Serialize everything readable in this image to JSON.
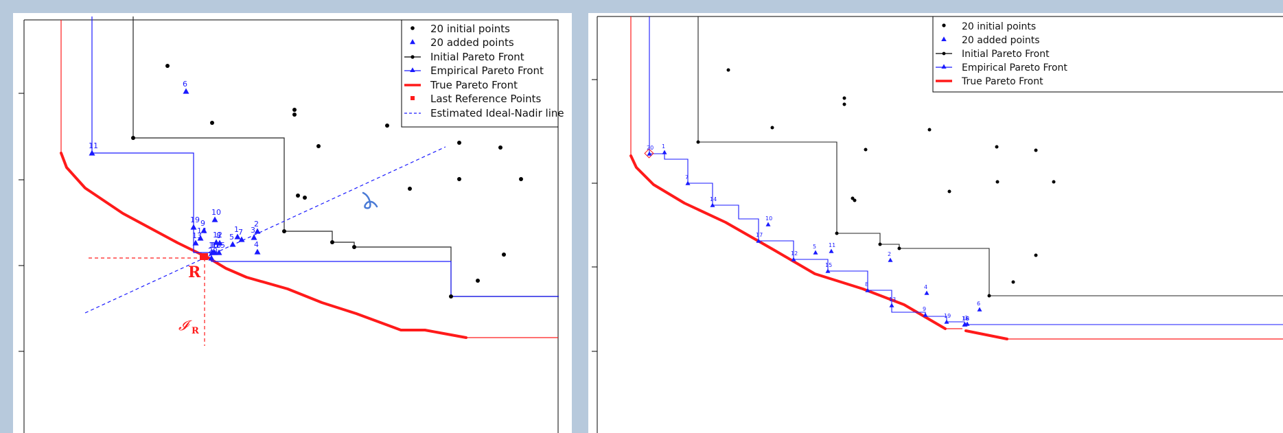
{
  "colors": {
    "background": "#b7c9dc",
    "initial": "#000000",
    "added": "#1a1aff",
    "true_front": "#ff1a1a",
    "empirical_front": "#1a1aff"
  },
  "chart_data": [
    {
      "type": "scatter",
      "panel": "left",
      "legend": [
        "20 initial points",
        "20 added points",
        "Initial Pareto Front",
        "Empirical Pareto Front",
        "True Pareto Front",
        "Last Reference Points",
        "Estimated Ideal-Nadir line"
      ],
      "legend_placement": "top-right",
      "annotations": {
        "reference_label": "R",
        "ideal_label": "𝓘",
        "ideal_subscript": "R"
      },
      "series": [
        {
          "name": "20 initial points",
          "points": [
            [
              225,
              77
            ],
            [
              290,
              160
            ],
            [
              410,
              141
            ],
            [
              410,
              148
            ],
            [
              445,
              194
            ],
            [
              545,
              164
            ],
            [
              650,
              189
            ],
            [
              710,
              196
            ],
            [
              175,
              182
            ],
            [
              415,
              266
            ],
            [
              425,
              269
            ],
            [
              578,
              256
            ],
            [
              650,
              242
            ],
            [
              740,
              242
            ],
            [
              395,
              318
            ],
            [
              465,
              334
            ],
            [
              497,
              341
            ],
            [
              715,
              352
            ],
            [
              677,
              390
            ],
            [
              638,
              413
            ]
          ]
        },
        {
          "name": "20 added points",
          "points": [
            [
              1,
              327,
              326
            ],
            [
              2,
              356,
              318
            ],
            [
              3,
              351,
              327
            ],
            [
              4,
              356,
              348
            ],
            [
              5,
              320,
              337
            ],
            [
              6,
              252,
              114
            ],
            [
              7,
              333,
              330
            ],
            [
              8,
              301,
              335
            ],
            [
              9,
              278,
              317
            ],
            [
              10,
              294,
              301
            ],
            [
              11,
              115,
              204
            ],
            [
              12,
              296,
              334
            ],
            [
              13,
              266,
              335
            ],
            [
              14,
              273,
              328
            ],
            [
              15,
              300,
              349
            ],
            [
              16,
              290,
              349
            ],
            [
              17,
              292,
              349
            ],
            [
              18,
              294,
              349
            ],
            [
              19,
              263,
              312
            ],
            [
              20,
              289,
              357
            ]
          ]
        },
        {
          "name": "Initial Pareto Front",
          "points": [
            [
              175,
              5
            ],
            [
              175,
              182
            ],
            [
              395,
              182
            ],
            [
              395,
              318
            ],
            [
              465,
              318
            ],
            [
              465,
              334
            ],
            [
              497,
              334
            ],
            [
              497,
              341
            ],
            [
              638,
              341
            ],
            [
              638,
              413
            ],
            [
              795,
              413
            ]
          ]
        },
        {
          "name": "Empirical Pareto Front",
          "points": [
            [
              115,
              5
            ],
            [
              115,
              204
            ],
            [
              263,
              204
            ],
            [
              263,
              349
            ],
            [
              289,
              349
            ],
            [
              289,
              362
            ],
            [
              638,
              362
            ],
            [
              638,
              413
            ],
            [
              795,
              413
            ]
          ]
        },
        {
          "name": "True Pareto Front",
          "points": [
            [
              70,
              5
            ],
            [
              70,
              204
            ],
            [
              78,
              225
            ],
            [
              105,
              255
            ],
            [
              160,
              292
            ],
            [
              240,
              335
            ],
            [
              285,
              357
            ],
            [
              310,
              372
            ],
            [
              340,
              385
            ],
            [
              400,
              402
            ],
            [
              450,
              422
            ],
            [
              500,
              438
            ],
            [
              565,
              462
            ],
            [
              600,
              462
            ],
            [
              660,
              473
            ],
            [
              795,
              473
            ]
          ]
        }
      ]
    },
    {
      "type": "scatter",
      "panel": "right",
      "legend": [
        "20 initial points",
        "20 added points",
        "Initial Pareto Front",
        "Empirical Pareto Front",
        "True Pareto Front"
      ],
      "legend_placement": "top-right",
      "series": [
        {
          "name": "20 initial points",
          "points": [
            [
              204,
              83
            ],
            [
              373,
              124
            ],
            [
              373,
              133
            ],
            [
              404,
              199
            ],
            [
              268,
              167
            ],
            [
              497,
              170
            ],
            [
              595,
              195
            ],
            [
              652,
              200
            ],
            [
              160,
              188
            ],
            [
              385,
              270
            ],
            [
              388,
              273
            ],
            [
              526,
              260
            ],
            [
              596,
              246
            ],
            [
              678,
              246
            ],
            [
              362,
              321
            ],
            [
              425,
              337
            ],
            [
              453,
              343
            ],
            [
              652,
              353
            ],
            [
              619,
              392
            ],
            [
              584,
              412
            ]
          ]
        },
        {
          "name": "20 added points",
          "points": [
            [
              1,
              111,
              203
            ],
            [
              2,
              440,
              360
            ],
            [
              3,
              552,
              453
            ],
            [
              4,
              493,
              408
            ],
            [
              5,
              331,
              349
            ],
            [
              6,
              570,
              432
            ],
            [
              7,
              145,
              248
            ],
            [
              8,
              407,
              404
            ],
            [
              9,
              491,
              440
            ],
            [
              10,
              262,
              308
            ],
            [
              11,
              354,
              347
            ],
            [
              12,
              299,
              359
            ],
            [
              13,
              442,
              426
            ],
            [
              14,
              181,
              280
            ],
            [
              15,
              349,
              376
            ],
            [
              16,
              548,
              454
            ],
            [
              17,
              248,
              332
            ],
            [
              18,
              549,
              454
            ],
            [
              19,
              522,
              450
            ],
            [
              20,
              89,
              205
            ]
          ]
        },
        {
          "name": "Initial Pareto Front",
          "points": [
            [
              160,
              5
            ],
            [
              160,
              188
            ],
            [
              362,
              188
            ],
            [
              362,
              321
            ],
            [
              425,
              321
            ],
            [
              425,
              337
            ],
            [
              453,
              337
            ],
            [
              453,
              343
            ],
            [
              584,
              343
            ],
            [
              584,
              412
            ],
            [
              1012,
              412
            ]
          ]
        },
        {
          "name": "Empirical Pareto Front",
          "points": [
            [
              89,
              5
            ],
            [
              89,
              205
            ],
            [
              111,
              205
            ],
            [
              111,
              213
            ],
            [
              145,
              213
            ],
            [
              145,
              248
            ],
            [
              181,
              248
            ],
            [
              181,
              280
            ],
            [
              219,
              280
            ],
            [
              219,
              300
            ],
            [
              248,
              300
            ],
            [
              248,
              332
            ],
            [
              299,
              332
            ],
            [
              299,
              359
            ],
            [
              349,
              359
            ],
            [
              349,
              376
            ],
            [
              407,
              376
            ],
            [
              407,
              404
            ],
            [
              442,
              404
            ],
            [
              442,
              436
            ],
            [
              491,
              436
            ],
            [
              491,
              442
            ],
            [
              522,
              442
            ],
            [
              522,
              450
            ],
            [
              548,
              450
            ],
            [
              548,
              454
            ],
            [
              1012,
              454
            ]
          ]
        },
        {
          "name": "True Pareto Front",
          "points": [
            [
              62,
              5
            ],
            [
              62,
              208
            ],
            [
              70,
              225
            ],
            [
              95,
              250
            ],
            [
              140,
              277
            ],
            [
              200,
              305
            ],
            [
              270,
              345
            ],
            [
              330,
              380
            ],
            [
              400,
              402
            ],
            [
              460,
              425
            ],
            [
              520,
              460
            ],
            [
              545,
              463
            ],
            [
              550,
              463
            ],
            [
              610,
              475
            ],
            [
              1012,
              475
            ]
          ]
        }
      ]
    }
  ]
}
